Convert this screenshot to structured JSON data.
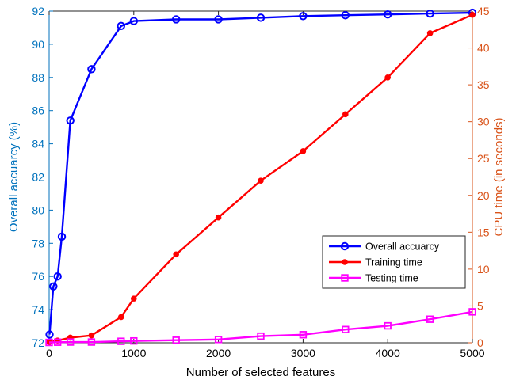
{
  "chart_data": {
    "type": "line",
    "title": "",
    "xlabel": "Number of selected features",
    "ylabel_left": "Overall accuarcy (%)",
    "ylabel_right": "CPU time (in seconds)",
    "xlim": [
      0,
      5000
    ],
    "ylim_left": [
      72,
      92
    ],
    "ylim_right": [
      0,
      45
    ],
    "xticks": [
      0,
      1000,
      2000,
      3000,
      4000,
      5000
    ],
    "yticks_left": [
      72,
      74,
      76,
      78,
      80,
      82,
      84,
      86,
      88,
      90,
      92
    ],
    "yticks_right": [
      0,
      5,
      10,
      15,
      20,
      25,
      30,
      35,
      40,
      45
    ],
    "grid": false,
    "legend_position": "center-right",
    "series": [
      {
        "name": "Overall accuarcy",
        "axis": "left",
        "color": "#0000ff",
        "marker": "circle",
        "x": [
          5,
          50,
          100,
          150,
          250,
          500,
          850,
          1000,
          1500,
          2000,
          2500,
          3000,
          3500,
          4000,
          4500,
          5000
        ],
        "y": [
          72.5,
          75.4,
          76.0,
          78.4,
          85.4,
          88.5,
          91.1,
          91.4,
          91.5,
          91.5,
          91.6,
          91.7,
          91.75,
          91.8,
          91.85,
          91.9
        ]
      },
      {
        "name": "Training time",
        "axis": "right",
        "color": "#ff0000",
        "marker": "dot",
        "x": [
          0,
          100,
          250,
          500,
          850,
          1000,
          1500,
          2000,
          2500,
          3000,
          3500,
          4000,
          4500,
          5000
        ],
        "y": [
          0.1,
          0.3,
          0.7,
          1.0,
          3.5,
          6.0,
          12.0,
          17.0,
          22.0,
          26.0,
          31.0,
          36.0,
          42.0,
          44.5
        ]
      },
      {
        "name": "Testing time",
        "axis": "right",
        "color": "#ff00ff",
        "marker": "square",
        "x": [
          0,
          100,
          250,
          500,
          850,
          1000,
          1500,
          2000,
          2500,
          3000,
          3500,
          4000,
          4500,
          5000
        ],
        "y": [
          0.05,
          0.08,
          0.1,
          0.1,
          0.2,
          0.25,
          0.35,
          0.45,
          0.9,
          1.1,
          1.8,
          2.3,
          3.2,
          4.2
        ]
      }
    ]
  },
  "colors": {
    "left_axis": "#0072bd",
    "right_axis": "#d95319",
    "frame": "#262626"
  }
}
